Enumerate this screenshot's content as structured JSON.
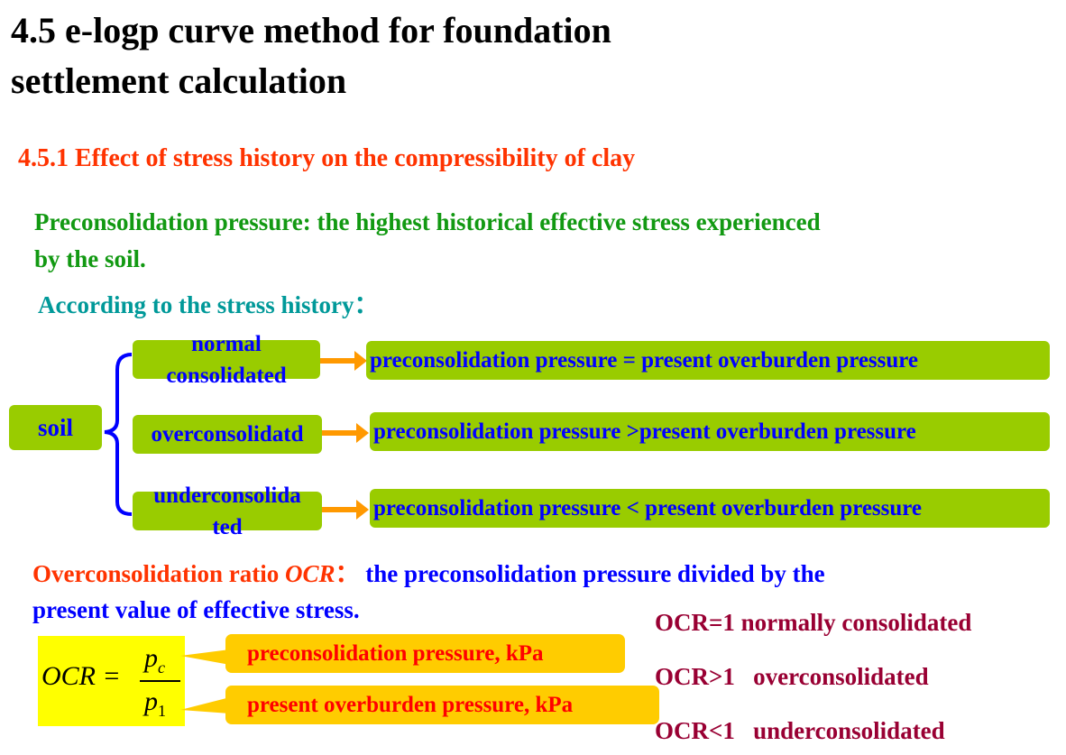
{
  "title": [
    "4.5 e-logp curve method for foundation",
    "settlement calculation"
  ],
  "subtitle": "4.5.1 Effect of stress history on the compressibility of clay",
  "definition": [
    "Preconsolidation pressure: the highest historical effective stress experienced",
    "by the soil."
  ],
  "according": "According to the stress history：",
  "diagram": {
    "root": "soil",
    "branches": [
      {
        "label": [
          "normal",
          "consolidated"
        ],
        "result": "preconsolidation pressure = present overburden pressure"
      },
      {
        "label": [
          "overconsolidatd"
        ],
        "result": "preconsolidation pressure >present overburden pressure"
      },
      {
        "label": [
          "underconsolida",
          "ted"
        ],
        "result": "preconsolidation pressure < present overburden pressure"
      }
    ]
  },
  "ocr": {
    "label": "Overconsolidation ratio ",
    "symbol": "OCR",
    "colon": "：",
    "text1": " the preconsolidation pressure divided by the",
    "text2": "present value of effective stress."
  },
  "formula": {
    "lhs": "OCR =",
    "num": "p",
    "num_sub": "c",
    "den": "p",
    "den_sub": "1"
  },
  "callouts": [
    "preconsolidation pressure, kPa",
    "present overburden pressure, kPa"
  ],
  "cases": [
    "OCR=1 normally consolidated",
    "OCR>1   overconsolidated",
    "OCR<1   underconsolidated"
  ]
}
